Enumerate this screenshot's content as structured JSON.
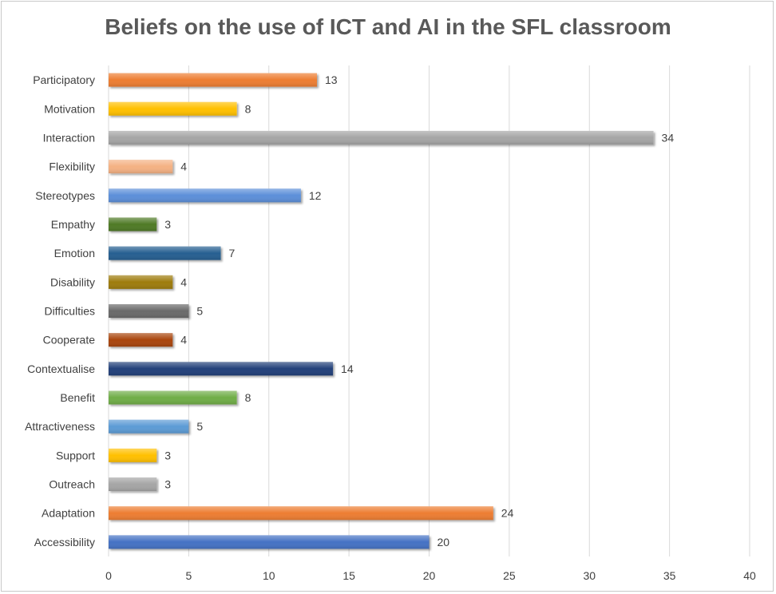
{
  "chart_data": {
    "type": "bar",
    "orientation": "horizontal",
    "title": "Beliefs on the use of ICT and AI in the SFL classroom",
    "categories": [
      "Participatory",
      "Motivation",
      "Interaction",
      "Flexibility",
      "Stereotypes",
      "Empathy",
      "Emotion",
      "Disability",
      "Difficulties",
      "Cooperate",
      "Contextualise",
      "Benefit",
      "Attractiveness",
      "Support",
      "Outreach",
      "Adaptation",
      "Accessibility"
    ],
    "values": [
      13,
      8,
      34,
      4,
      12,
      3,
      7,
      4,
      5,
      4,
      14,
      8,
      5,
      3,
      3,
      24,
      20
    ],
    "colors": [
      "#ED7D31",
      "#FFC000",
      "#A5A5A5",
      "#F4B183",
      "#5B8FD9",
      "#4F7A28",
      "#255E91",
      "#9E7B0A",
      "#6B6B6B",
      "#A9450F",
      "#22407A",
      "#70AD47",
      "#5B9BD5",
      "#FFC000",
      "#A5A5A5",
      "#ED7D31",
      "#4472C4"
    ],
    "xlim": [
      0,
      40
    ],
    "xticks": [
      0,
      5,
      10,
      15,
      20,
      25,
      30,
      35,
      40
    ],
    "grid": true,
    "legend": "none"
  }
}
